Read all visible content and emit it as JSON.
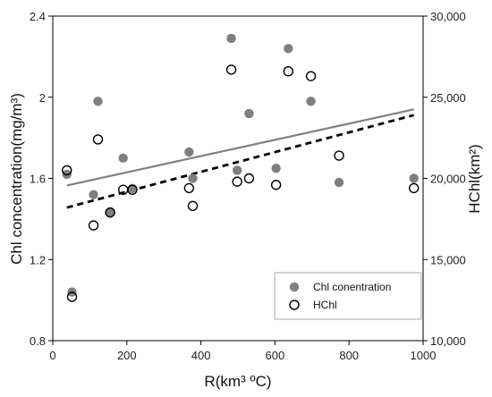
{
  "chart_data": {
    "type": "scatter",
    "xlabel": "R(km³ ºC)",
    "ylabel_left": "Chl concentration(mg/m³)",
    "ylabel_right": "HChl(km²)",
    "xlim": [
      0,
      1000
    ],
    "ylim_left": [
      0.8,
      2.4
    ],
    "ylim_right": [
      10000,
      30000
    ],
    "x_ticks": [
      "0",
      "200",
      "400",
      "600",
      "800",
      "1000"
    ],
    "y_left_ticks": [
      "0.8",
      "1.2",
      "1.6",
      "2",
      "2.4"
    ],
    "y_right_ticks": [
      "10,000",
      "15,000",
      "20,000",
      "25,000",
      "30,000"
    ],
    "grid": false,
    "legend_position": "bottom-right",
    "colors": {
      "chl": "#7f7f7f",
      "hchl_marker": "#000000",
      "chl_trend": "#808080",
      "hchl_trend": "#000000"
    },
    "series": [
      {
        "name": "Chl conentration",
        "axis": "left",
        "marker": "filled-circle",
        "points": [
          [
            38,
            1.62
          ],
          [
            52,
            1.04
          ],
          [
            110,
            1.52
          ],
          [
            122,
            1.98
          ],
          [
            155,
            1.43
          ],
          [
            190,
            1.7
          ],
          [
            215,
            1.55
          ],
          [
            368,
            1.73
          ],
          [
            378,
            1.6
          ],
          [
            482,
            2.29
          ],
          [
            498,
            1.64
          ],
          [
            530,
            1.92
          ],
          [
            636,
            2.24
          ],
          [
            603,
            1.65
          ],
          [
            697,
            1.98
          ],
          [
            773,
            1.58
          ],
          [
            975,
            1.6
          ]
        ]
      },
      {
        "name": "HChl",
        "axis": "right",
        "marker": "open-circle",
        "points": [
          [
            38,
            20500
          ],
          [
            52,
            12700
          ],
          [
            110,
            17100
          ],
          [
            122,
            22400
          ],
          [
            155,
            17900
          ],
          [
            190,
            19300
          ],
          [
            215,
            19300
          ],
          [
            368,
            19400
          ],
          [
            378,
            18300
          ],
          [
            482,
            26700
          ],
          [
            498,
            19800
          ],
          [
            530,
            20000
          ],
          [
            636,
            26600
          ],
          [
            603,
            19600
          ],
          [
            697,
            26300
          ],
          [
            773,
            21400
          ],
          [
            975,
            19400
          ]
        ]
      }
    ],
    "trendlines": [
      {
        "series": "Chl conentration",
        "axis": "left",
        "style": "solid",
        "from": [
          38,
          1.565
        ],
        "to": [
          975,
          1.94
        ]
      },
      {
        "series": "HChl",
        "axis": "right",
        "style": "dashed",
        "from": [
          38,
          18200
        ],
        "to": [
          975,
          23900
        ]
      }
    ]
  }
}
